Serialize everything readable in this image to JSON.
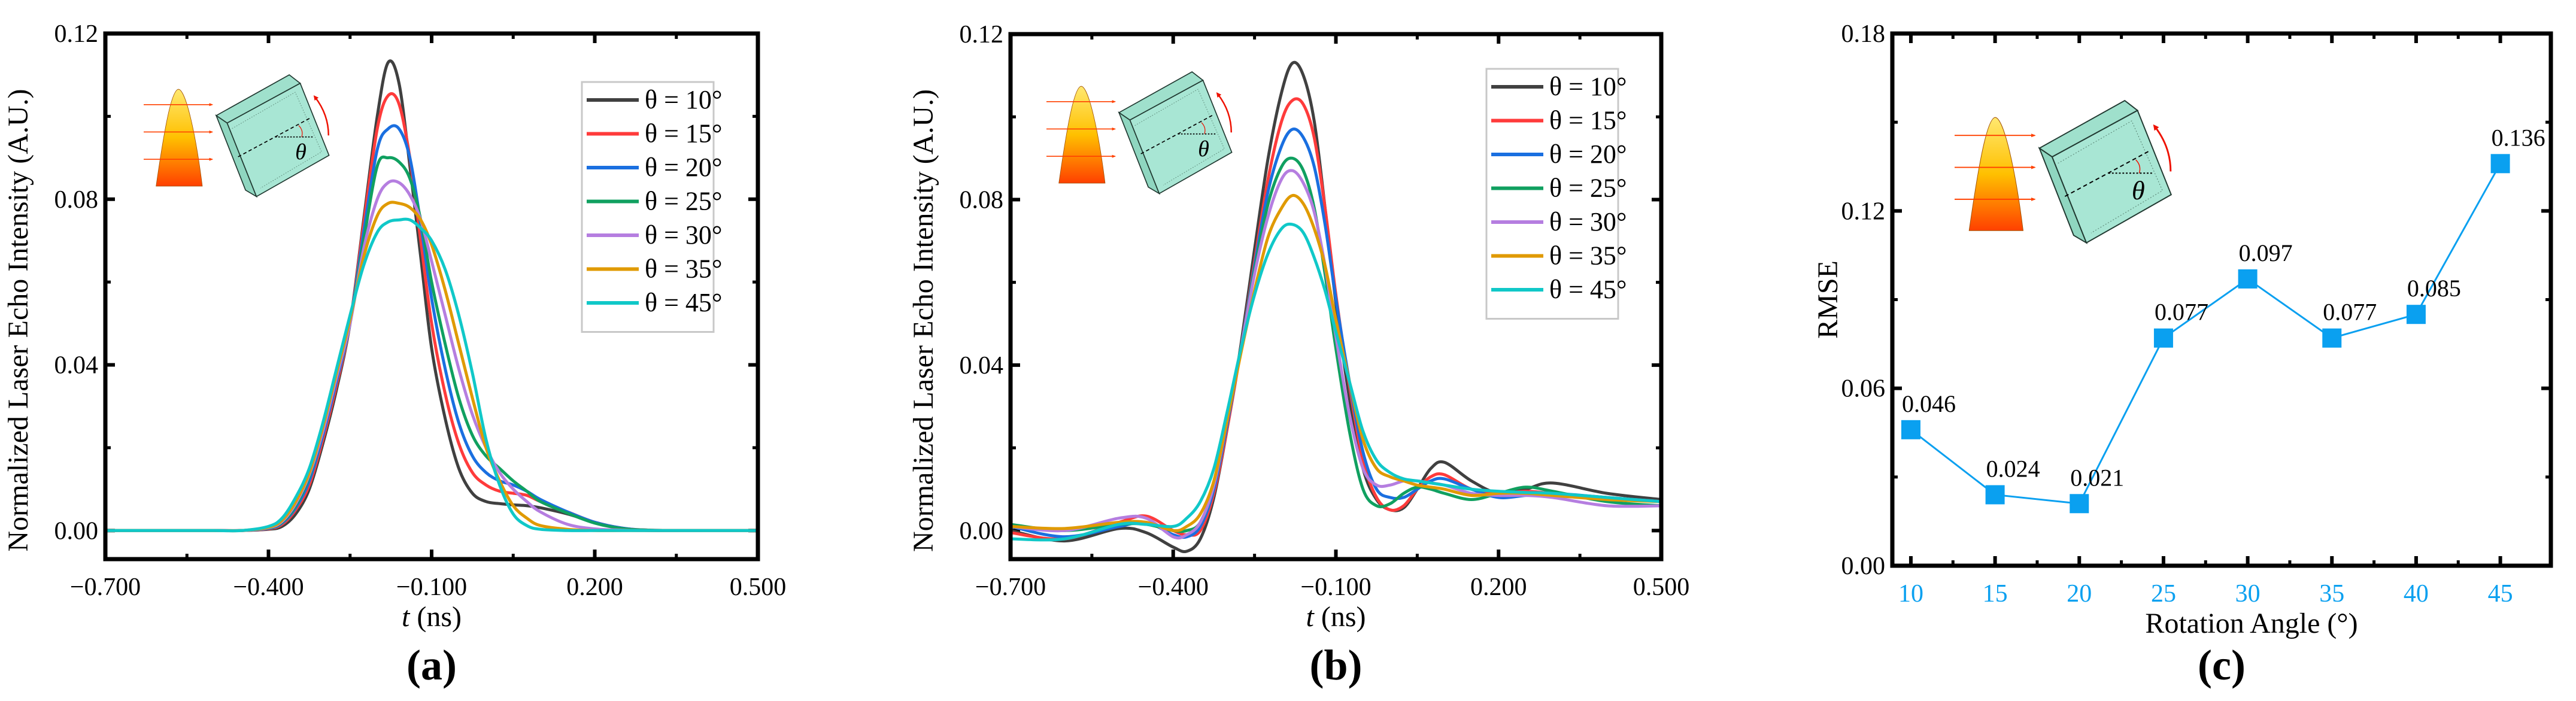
{
  "chart_data": [
    {
      "panel": "(a)",
      "type": "line",
      "xlabel_italic": "t",
      "xlabel_rest": " (ns)",
      "ylabel": "Normalized Laser Echo Intensity (A.U.)",
      "xlim": [
        -0.7,
        0.5
      ],
      "ylim": [
        -0.0069,
        0.12
      ],
      "xticks": [
        "−0.700",
        "−0.400",
        "−0.100",
        "0.200",
        "0.500"
      ],
      "xtick_values": [
        -0.7,
        -0.4,
        -0.1,
        0.2,
        0.5
      ],
      "yticks": [
        "0.00",
        "0.04",
        "0.08",
        "0.12"
      ],
      "ytick_values": [
        0,
        0.04,
        0.08,
        0.12
      ],
      "legend_position": "top-right",
      "x": [
        -0.7,
        -0.6,
        -0.5,
        -0.45,
        -0.4,
        -0.375,
        -0.35,
        -0.325,
        -0.3,
        -0.275,
        -0.25,
        -0.225,
        -0.2,
        -0.18,
        -0.16,
        -0.14,
        -0.12,
        -0.1,
        -0.075,
        -0.05,
        -0.025,
        0,
        0.025,
        0.05,
        0.075,
        0.1,
        0.15,
        0.2,
        0.25,
        0.3,
        0.4,
        0.5
      ],
      "series": [
        {
          "name": "θ = 10°",
          "color": "#404040",
          "values": [
            0,
            0,
            0,
            0,
            0.0003,
            0.001,
            0.004,
            0.01,
            0.021,
            0.034,
            0.05,
            0.075,
            0.1,
            0.113,
            0.108,
            0.088,
            0.066,
            0.044,
            0.027,
            0.015,
            0.009,
            0.007,
            0.0065,
            0.0062,
            0.006,
            0.0055,
            0.004,
            0.002,
            0.0005,
            0,
            0,
            0
          ]
        },
        {
          "name": "θ = 15°",
          "color": "#ff3b3b",
          "values": [
            0,
            0,
            0,
            0,
            0.0004,
            0.0015,
            0.005,
            0.011,
            0.022,
            0.035,
            0.05,
            0.074,
            0.097,
            0.105,
            0.103,
            0.09,
            0.07,
            0.05,
            0.033,
            0.021,
            0.014,
            0.011,
            0.0095,
            0.009,
            0.0085,
            0.007,
            0.0045,
            0.002,
            0.0006,
            0.0001,
            0,
            0
          ]
        },
        {
          "name": "θ = 20°",
          "color": "#1a6fe0",
          "values": [
            0,
            0,
            0,
            0,
            0.0005,
            0.0018,
            0.0055,
            0.012,
            0.023,
            0.036,
            0.05,
            0.072,
            0.092,
            0.097,
            0.097,
            0.09,
            0.074,
            0.056,
            0.039,
            0.026,
            0.018,
            0.014,
            0.012,
            0.011,
            0.0095,
            0.0075,
            0.0045,
            0.002,
            0.0006,
            0.0001,
            0,
            0
          ]
        },
        {
          "name": "θ = 25°",
          "color": "#10a060",
          "values": [
            0,
            0,
            0,
            0,
            0.0006,
            0.002,
            0.006,
            0.013,
            0.024,
            0.037,
            0.05,
            0.07,
            0.088,
            0.09,
            0.089,
            0.085,
            0.075,
            0.06,
            0.045,
            0.032,
            0.023,
            0.018,
            0.015,
            0.012,
            0.0095,
            0.007,
            0.0042,
            0.0018,
            0.0005,
            0.0001,
            0,
            0
          ]
        },
        {
          "name": "θ = 30°",
          "color": "#b57ee0",
          "values": [
            0,
            0,
            0,
            0,
            0.0007,
            0.0022,
            0.0065,
            0.0135,
            0.024,
            0.037,
            0.05,
            0.068,
            0.08,
            0.084,
            0.084,
            0.081,
            0.075,
            0.065,
            0.052,
            0.039,
            0.028,
            0.02,
            0.014,
            0.01,
            0.007,
            0.0045,
            0.0015,
            0.0004,
            0.0001,
            0,
            0,
            0
          ]
        },
        {
          "name": "θ = 35°",
          "color": "#e09a00",
          "values": [
            0,
            0,
            0,
            0,
            0.0008,
            0.0025,
            0.007,
            0.014,
            0.025,
            0.038,
            0.051,
            0.066,
            0.076,
            0.079,
            0.079,
            0.078,
            0.075,
            0.069,
            0.058,
            0.045,
            0.032,
            0.02,
            0.012,
            0.006,
            0.003,
            0.0012,
            0.0003,
            0,
            0,
            0,
            0,
            0
          ]
        },
        {
          "name": "θ = 45°",
          "color": "#10c8c8",
          "values": [
            0,
            0,
            0,
            0,
            0.001,
            0.003,
            0.008,
            0.015,
            0.026,
            0.039,
            0.052,
            0.064,
            0.072,
            0.0745,
            0.075,
            0.075,
            0.073,
            0.07,
            0.063,
            0.052,
            0.038,
            0.022,
            0.011,
            0.004,
            0.0012,
            0.0003,
            0,
            0,
            0,
            0,
            0,
            0
          ]
        }
      ]
    },
    {
      "panel": "(b)",
      "type": "line",
      "xlabel_italic": "t",
      "xlabel_rest": " (ns)",
      "ylabel": "Normalized Laser Echo Intensity (A.U.)",
      "xlim": [
        -0.7,
        0.5
      ],
      "ylim": [
        -0.0069,
        0.12
      ],
      "xticks": [
        "−0.700",
        "−0.400",
        "−0.100",
        "0.200",
        "0.500"
      ],
      "xtick_values": [
        -0.7,
        -0.4,
        -0.1,
        0.2,
        0.5
      ],
      "yticks": [
        "0.00",
        "0.04",
        "0.08",
        "0.12"
      ],
      "ytick_values": [
        0,
        0.04,
        0.08,
        0.12
      ],
      "legend_position": "top-right",
      "x": [
        -0.7,
        -0.6,
        -0.5,
        -0.45,
        -0.4,
        -0.375,
        -0.35,
        -0.325,
        -0.3,
        -0.275,
        -0.25,
        -0.225,
        -0.2,
        -0.18,
        -0.16,
        -0.14,
        -0.12,
        -0.1,
        -0.075,
        -0.05,
        -0.025,
        0,
        0.025,
        0.05,
        0.075,
        0.1,
        0.15,
        0.2,
        0.25,
        0.3,
        0.4,
        0.5
      ],
      "series": [
        {
          "name": "θ = 10°",
          "color": "#404040",
          "values": [
            0,
            -0.0025,
            0.0005,
            -0.0005,
            -0.004,
            -0.005,
            -0.002,
            0.008,
            0.025,
            0.045,
            0.068,
            0.09,
            0.106,
            0.113,
            0.11,
            0.099,
            0.078,
            0.055,
            0.032,
            0.015,
            0.0075,
            0.005,
            0.0055,
            0.01,
            0.015,
            0.0165,
            0.012,
            0.009,
            0.01,
            0.0115,
            0.009,
            0.0075
          ]
        },
        {
          "name": "θ = 15°",
          "color": "#ff3b3b",
          "values": [
            -0.0005,
            -0.002,
            0.002,
            0.0035,
            0,
            -0.001,
            0,
            0.009,
            0.025,
            0.044,
            0.065,
            0.085,
            0.099,
            0.104,
            0.103,
            0.095,
            0.078,
            0.057,
            0.035,
            0.017,
            0.008,
            0.005,
            0.006,
            0.01,
            0.013,
            0.0135,
            0.01,
            0.009,
            0.0095,
            0.009,
            0.008,
            0.007
          ]
        },
        {
          "name": "θ = 20°",
          "color": "#1a6fe0",
          "values": [
            0.001,
            -0.0015,
            0.001,
            0.002,
            -0.001,
            -0.0015,
            0.001,
            0.01,
            0.026,
            0.044,
            0.064,
            0.082,
            0.093,
            0.097,
            0.095,
            0.088,
            0.074,
            0.056,
            0.036,
            0.019,
            0.01,
            0.008,
            0.008,
            0.01,
            0.012,
            0.0125,
            0.01,
            0.008,
            0.0085,
            0.009,
            0.008,
            0.007
          ]
        },
        {
          "name": "θ = 25°",
          "color": "#10a060",
          "values": [
            0.0015,
            0,
            0.0015,
            0.0015,
            0,
            0,
            0.002,
            0.011,
            0.027,
            0.044,
            0.063,
            0.079,
            0.088,
            0.09,
            0.087,
            0.078,
            0.062,
            0.044,
            0.024,
            0.01,
            0.006,
            0.0065,
            0.009,
            0.0105,
            0.01,
            0.009,
            0.0075,
            0.009,
            0.0105,
            0.0095,
            0.007,
            0.006
          ]
        },
        {
          "name": "θ = 30°",
          "color": "#b57ee0",
          "values": [
            0.001,
            0,
            0.003,
            0.003,
            -0.0015,
            -0.001,
            0.002,
            0.011,
            0.027,
            0.044,
            0.062,
            0.076,
            0.085,
            0.087,
            0.084,
            0.077,
            0.064,
            0.047,
            0.028,
            0.015,
            0.011,
            0.011,
            0.012,
            0.012,
            0.0115,
            0.011,
            0.009,
            0.0085,
            0.0085,
            0.008,
            0.006,
            0.006
          ]
        },
        {
          "name": "θ = 35°",
          "color": "#e09a00",
          "values": [
            0.001,
            0.0005,
            0.002,
            0.002,
            0,
            0.001,
            0.004,
            0.012,
            0.027,
            0.043,
            0.058,
            0.071,
            0.078,
            0.081,
            0.079,
            0.073,
            0.064,
            0.051,
            0.036,
            0.022,
            0.015,
            0.013,
            0.012,
            0.011,
            0.0105,
            0.01,
            0.0085,
            0.009,
            0.009,
            0.0085,
            0.0075,
            0.007
          ]
        },
        {
          "name": "θ = 45°",
          "color": "#10c8c8",
          "values": [
            -0.002,
            -0.002,
            0.0015,
            0.0015,
            0.001,
            0.003,
            0.007,
            0.015,
            0.029,
            0.044,
            0.057,
            0.067,
            0.073,
            0.074,
            0.072,
            0.066,
            0.058,
            0.048,
            0.036,
            0.024,
            0.017,
            0.014,
            0.0125,
            0.012,
            0.0115,
            0.011,
            0.01,
            0.0095,
            0.0092,
            0.009,
            0.008,
            0.007
          ]
        }
      ]
    },
    {
      "panel": "(c)",
      "type": "line",
      "xlabel": "Rotation Angle (°)",
      "ylabel": "RMSE",
      "xlim": [
        8.9,
        48
      ],
      "ylim": [
        0,
        0.18
      ],
      "xticks": [
        "10",
        "15",
        "20",
        "25",
        "30",
        "35",
        "40",
        "45"
      ],
      "xtick_values": [
        10,
        15,
        20,
        25,
        30,
        35,
        40,
        45
      ],
      "yticks": [
        "0.00",
        "0.06",
        "0.12",
        "0.18"
      ],
      "ytick_values": [
        0,
        0.06,
        0.12,
        0.18
      ],
      "color": "#0aa0f0",
      "x": [
        10,
        15,
        20,
        25,
        30,
        35,
        40,
        45
      ],
      "values": [
        0.046,
        0.024,
        0.021,
        0.077,
        0.097,
        0.077,
        0.085,
        0.136
      ],
      "labels": [
        "0.046",
        "0.024",
        "0.021",
        "0.077",
        "0.097",
        "0.077",
        "0.085",
        "0.136"
      ]
    }
  ],
  "inset": {
    "angle_symbol": "θ"
  }
}
